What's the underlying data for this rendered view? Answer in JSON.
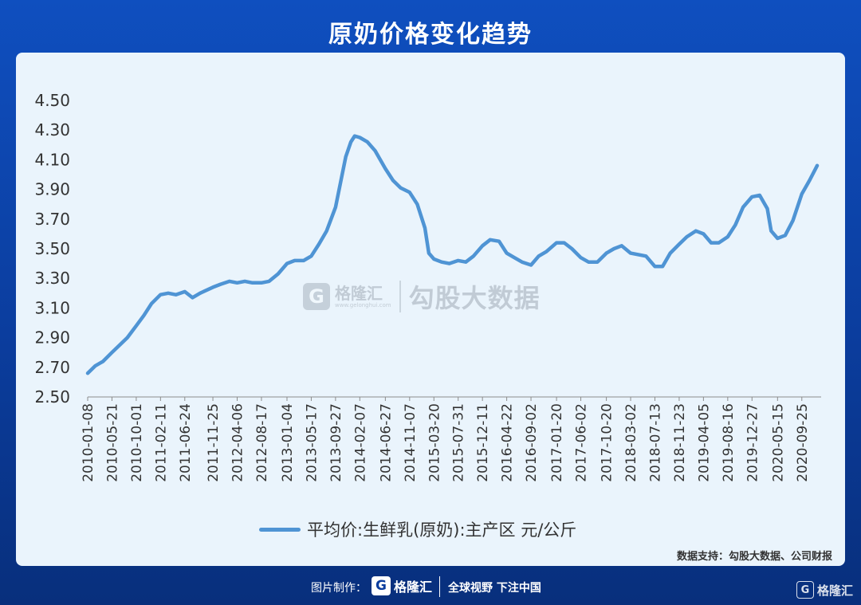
{
  "title": "原奶价格变化趋势",
  "watermark": {
    "logo_letter": "G",
    "brand": "格隆汇",
    "url": "www.gelonghui.com",
    "text": "勾股大数据"
  },
  "source_note": "数据支持：勾股大数据、公司财报",
  "footer": {
    "credit": "图片制作：",
    "brand": "格隆汇",
    "slogan": "全球视野 下注中国",
    "corner_brand": "格隆汇"
  },
  "colors": {
    "background": "#0b3d9e",
    "panel": "#eaf4fc",
    "line": "#4f94d4"
  },
  "chart_data": {
    "type": "line",
    "title": "",
    "xlabel": "",
    "ylabel": "",
    "ylim": [
      2.5,
      4.5
    ],
    "yticks": [
      "2.50",
      "2.70",
      "2.90",
      "3.10",
      "3.30",
      "3.50",
      "3.70",
      "3.90",
      "4.10",
      "4.30",
      "4.50"
    ],
    "xticks": [
      "2010-01-08",
      "2010-05-21",
      "2010-10-01",
      "2011-02-11",
      "2011-06-24",
      "2011-11-25",
      "2012-04-06",
      "2012-08-17",
      "2013-01-04",
      "2013-05-17",
      "2013-09-27",
      "2014-02-07",
      "2014-06-27",
      "2014-11-07",
      "2015-03-20",
      "2015-07-31",
      "2015-12-11",
      "2016-04-22",
      "2016-09-02",
      "2017-01-20",
      "2017-06-02",
      "2017-10-20",
      "2018-03-02",
      "2018-07-13",
      "2018-11-23",
      "2019-04-05",
      "2019-08-16",
      "2019-12-27",
      "2020-05-15",
      "2020-09-25"
    ],
    "grid": false,
    "legend_position": "bottom",
    "series": [
      {
        "name": "平均价:生鲜乳(原奶):主产区 元/公斤",
        "color": "#4f94d4",
        "points": [
          [
            "2010-01-08",
            2.66
          ],
          [
            "2010-02-19",
            2.71
          ],
          [
            "2010-04-02",
            2.74
          ],
          [
            "2010-05-21",
            2.8
          ],
          [
            "2010-07-02",
            2.85
          ],
          [
            "2010-08-13",
            2.9
          ],
          [
            "2010-10-01",
            2.98
          ],
          [
            "2010-11-12",
            3.05
          ],
          [
            "2010-12-24",
            3.13
          ],
          [
            "2011-02-11",
            3.19
          ],
          [
            "2011-03-25",
            3.2
          ],
          [
            "2011-05-06",
            3.19
          ],
          [
            "2011-06-24",
            3.21
          ],
          [
            "2011-08-05",
            3.17
          ],
          [
            "2011-09-16",
            3.2
          ],
          [
            "2011-11-25",
            3.24
          ],
          [
            "2012-01-06",
            3.26
          ],
          [
            "2012-02-24",
            3.28
          ],
          [
            "2012-04-06",
            3.27
          ],
          [
            "2012-05-18",
            3.28
          ],
          [
            "2012-06-29",
            3.27
          ],
          [
            "2012-08-17",
            3.27
          ],
          [
            "2012-09-28",
            3.28
          ],
          [
            "2012-11-16",
            3.33
          ],
          [
            "2013-01-04",
            3.4
          ],
          [
            "2013-02-15",
            3.42
          ],
          [
            "2013-04-05",
            3.42
          ],
          [
            "2013-05-17",
            3.45
          ],
          [
            "2013-06-28",
            3.53
          ],
          [
            "2013-08-09",
            3.62
          ],
          [
            "2013-09-27",
            3.78
          ],
          [
            "2013-10-25",
            3.95
          ],
          [
            "2013-11-22",
            4.12
          ],
          [
            "2013-12-20",
            4.22
          ],
          [
            "2014-01-10",
            4.26
          ],
          [
            "2014-02-07",
            4.25
          ],
          [
            "2014-03-21",
            4.22
          ],
          [
            "2014-05-02",
            4.16
          ],
          [
            "2014-06-27",
            4.04
          ],
          [
            "2014-08-08",
            3.96
          ],
          [
            "2014-09-19",
            3.91
          ],
          [
            "2014-11-07",
            3.88
          ],
          [
            "2014-12-19",
            3.8
          ],
          [
            "2015-01-30",
            3.64
          ],
          [
            "2015-02-20",
            3.47
          ],
          [
            "2015-03-20",
            3.43
          ],
          [
            "2015-05-01",
            3.41
          ],
          [
            "2015-06-12",
            3.4
          ],
          [
            "2015-07-31",
            3.42
          ],
          [
            "2015-09-11",
            3.41
          ],
          [
            "2015-10-23",
            3.45
          ],
          [
            "2015-12-11",
            3.52
          ],
          [
            "2016-01-22",
            3.56
          ],
          [
            "2016-03-11",
            3.55
          ],
          [
            "2016-04-22",
            3.47
          ],
          [
            "2016-06-03",
            3.44
          ],
          [
            "2016-07-15",
            3.41
          ],
          [
            "2016-09-02",
            3.39
          ],
          [
            "2016-10-14",
            3.45
          ],
          [
            "2016-11-25",
            3.48
          ],
          [
            "2017-01-20",
            3.54
          ],
          [
            "2017-03-03",
            3.54
          ],
          [
            "2017-04-14",
            3.5
          ],
          [
            "2017-06-02",
            3.44
          ],
          [
            "2017-07-14",
            3.41
          ],
          [
            "2017-09-01",
            3.41
          ],
          [
            "2017-10-20",
            3.47
          ],
          [
            "2017-12-01",
            3.5
          ],
          [
            "2018-01-12",
            3.52
          ],
          [
            "2018-03-02",
            3.47
          ],
          [
            "2018-04-13",
            3.46
          ],
          [
            "2018-05-25",
            3.45
          ],
          [
            "2018-07-13",
            3.38
          ],
          [
            "2018-08-24",
            3.38
          ],
          [
            "2018-10-05",
            3.47
          ],
          [
            "2018-11-23",
            3.53
          ],
          [
            "2019-01-04",
            3.58
          ],
          [
            "2019-02-22",
            3.62
          ],
          [
            "2019-04-05",
            3.6
          ],
          [
            "2019-05-17",
            3.54
          ],
          [
            "2019-06-28",
            3.54
          ],
          [
            "2019-08-16",
            3.58
          ],
          [
            "2019-09-27",
            3.66
          ],
          [
            "2019-11-08",
            3.78
          ],
          [
            "2019-12-27",
            3.85
          ],
          [
            "2020-02-07",
            3.86
          ],
          [
            "2020-03-20",
            3.77
          ],
          [
            "2020-04-10",
            3.62
          ],
          [
            "2020-05-15",
            3.57
          ],
          [
            "2020-06-26",
            3.59
          ],
          [
            "2020-08-07",
            3.69
          ],
          [
            "2020-09-25",
            3.87
          ],
          [
            "2020-11-06",
            3.96
          ],
          [
            "2020-12-18",
            4.06
          ]
        ]
      }
    ]
  }
}
